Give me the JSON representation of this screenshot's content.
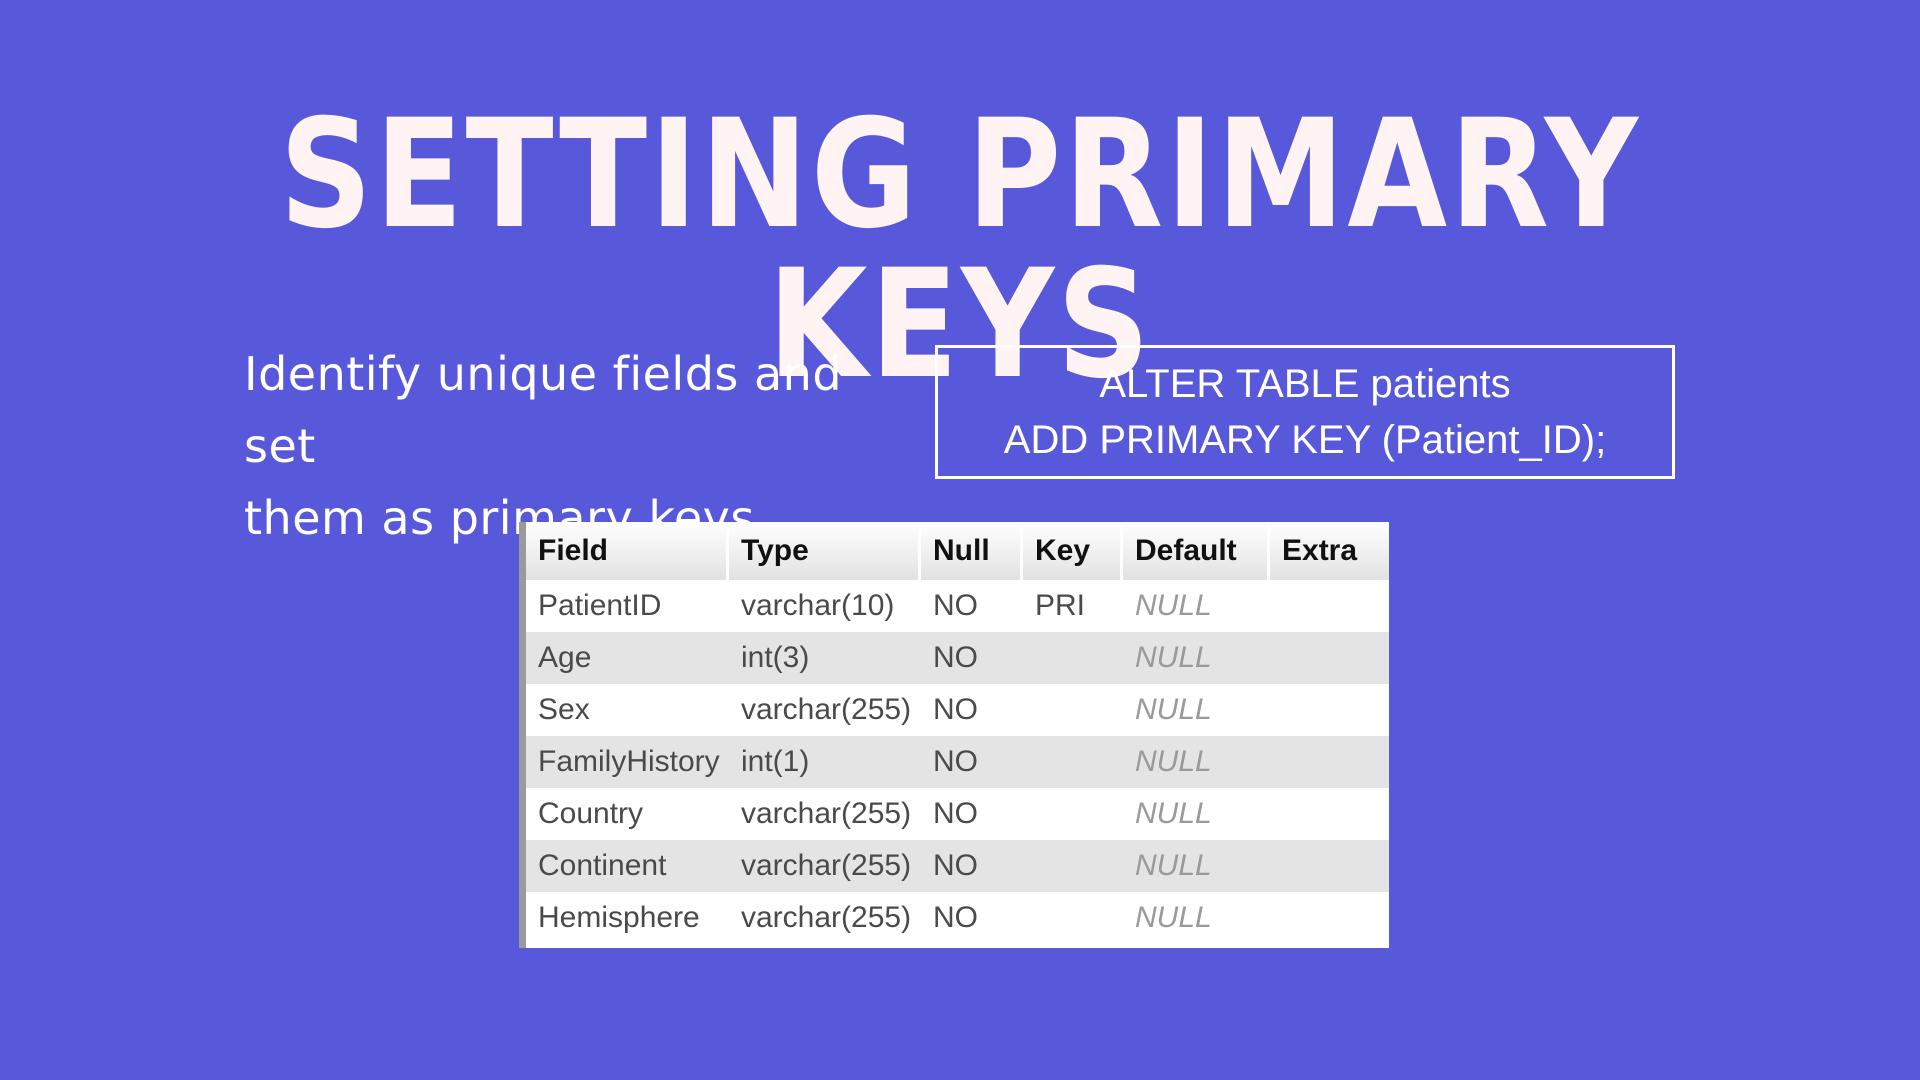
{
  "slide": {
    "title": "SETTING PRIMARY KEYS",
    "description": {
      "line1": "Identify unique fields and set",
      "line2": "them as primary keys"
    },
    "code": {
      "line1": "ALTER TABLE patients",
      "line2": "ADD PRIMARY KEY (Patient_ID);"
    },
    "colors": {
      "background": "#5858DB",
      "title": "#FFF3F4",
      "text": "#FFFFFF"
    }
  },
  "table": {
    "headers": [
      "Field",
      "Type",
      "Null",
      "Key",
      "Default",
      "Extra"
    ],
    "rows": [
      [
        "PatientID",
        "varchar(10)",
        "NO",
        "PRI",
        "NULL",
        ""
      ],
      [
        "Age",
        "int(3)",
        "NO",
        "",
        "NULL",
        ""
      ],
      [
        "Sex",
        "varchar(255)",
        "NO",
        "",
        "NULL",
        ""
      ],
      [
        "FamilyHistory",
        "int(1)",
        "NO",
        "",
        "NULL",
        ""
      ],
      [
        "Country",
        "varchar(255)",
        "NO",
        "",
        "NULL",
        ""
      ],
      [
        "Continent",
        "varchar(255)",
        "NO",
        "",
        "NULL",
        ""
      ],
      [
        "Hemisphere",
        "varchar(255)",
        "NO",
        "",
        "NULL",
        ""
      ]
    ]
  }
}
